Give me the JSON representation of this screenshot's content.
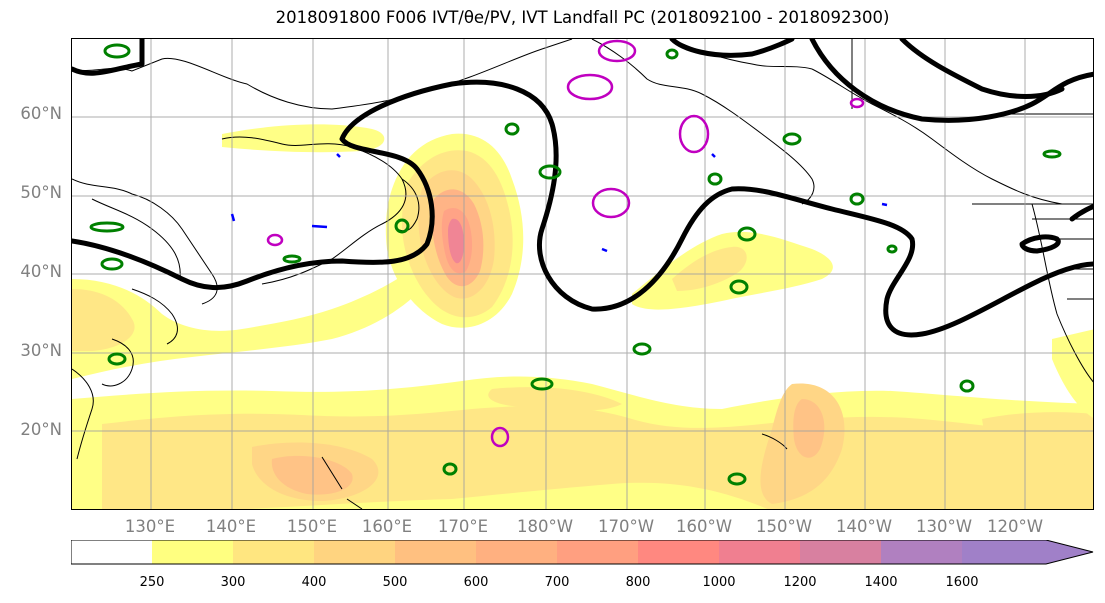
{
  "title": "2018091800 F006 IVT/θe/PV, IVT Landfall PC (2018092100 - 2018092300)",
  "map": {
    "lat_labels": [
      "60°N",
      "50°N",
      "40°N",
      "30°N",
      "20°N"
    ],
    "lon_labels": [
      "130°E",
      "140°E",
      "150°E",
      "160°E",
      "170°E",
      "180°W",
      "170°W",
      "160°W",
      "150°W",
      "140°W",
      "130°W",
      "120°W"
    ],
    "extent": {
      "lon_min": 120,
      "lon_max": 246,
      "lat_min": 10,
      "lat_max": 70
    },
    "contour_colors": {
      "theta_e": "#000000",
      "pv_green": "#008000",
      "pv_magenta": "#c000c0",
      "pv_blue": "#0000ff"
    }
  },
  "colorbar": {
    "ticks": [
      "250",
      "300",
      "400",
      "500",
      "600",
      "700",
      "800",
      "1000",
      "1200",
      "1400",
      "1600"
    ],
    "colors": [
      "#ffffff",
      "#ffff80",
      "#ffe680",
      "#ffd480",
      "#ffc080",
      "#ffb080",
      "#ff9f80",
      "#ff8880",
      "#f07f90",
      "#d880a0",
      "#b080c0",
      "#a080c8"
    ]
  }
}
